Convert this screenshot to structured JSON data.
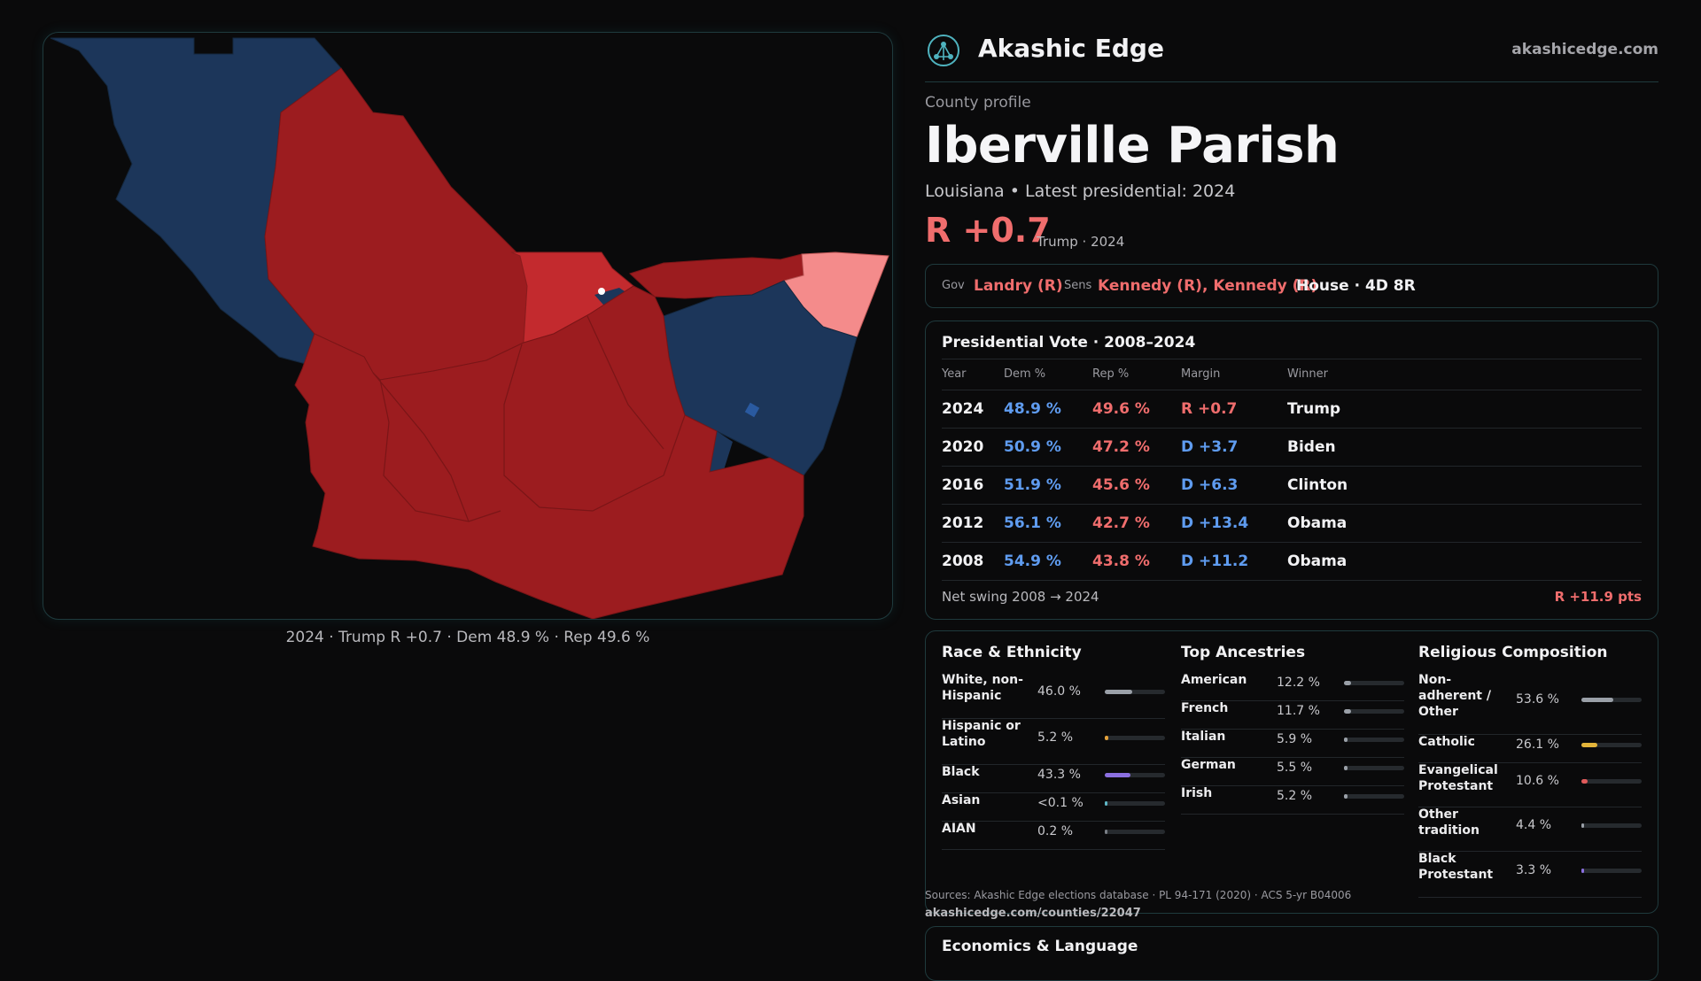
{
  "map": {
    "caption": "2024 · Trump R +0.7 · Dem 48.9 % · Rep 49.6 %",
    "colors": {
      "dem": "#1c365a",
      "rep": "#9c1c1f",
      "rep_light": "#c32a2e",
      "rep_pale": "#f48b8b"
    }
  },
  "header": {
    "brand": "Akashic Edge",
    "site": "akashicedge.com",
    "logo_icon": "network-globe-icon"
  },
  "profile": {
    "eyebrow": "County profile",
    "name": "Iberville Parish",
    "subtitle": "Louisiana • Latest presidential: 2024",
    "margin": "R +0.7",
    "margin_note": "Trump · 2024"
  },
  "officials": {
    "gov_label": "Gov",
    "gov": "Landry (R)",
    "sens_label": "Sens",
    "sens": "Kennedy (R), Kennedy (R)",
    "house": "House · 4D 8R"
  },
  "presidential": {
    "title": "Presidential Vote · 2008–2024",
    "headers": [
      "Year",
      "Dem %",
      "Rep %",
      "Margin",
      "Winner"
    ],
    "rows": [
      {
        "year": "2024",
        "dem": "48.9 %",
        "rep": "49.6 %",
        "margin": "R +0.7",
        "winner": "Trump"
      },
      {
        "year": "2020",
        "dem": "50.9 %",
        "rep": "47.2 %",
        "margin": "D +3.7",
        "winner": "Biden"
      },
      {
        "year": "2016",
        "dem": "51.9 %",
        "rep": "45.6 %",
        "margin": "D +6.3",
        "winner": "Clinton"
      },
      {
        "year": "2012",
        "dem": "56.1 %",
        "rep": "42.7 %",
        "margin": "D +13.4",
        "winner": "Obama"
      },
      {
        "year": "2008",
        "dem": "54.9 %",
        "rep": "43.8 %",
        "margin": "D +11.2",
        "winner": "Obama"
      }
    ],
    "net_label": "Net swing 2008 → 2024",
    "net_value": "R +11.9 pts"
  },
  "demographics": {
    "race": {
      "title": "Race & Ethnicity",
      "items": [
        {
          "label": "White, non-Hispanic",
          "value": "46.0 %",
          "pct": 46.0,
          "color": "#9aa0a8"
        },
        {
          "label": "Hispanic or Latino",
          "value": "5.2 %",
          "pct": 5.2,
          "color": "#e3a13a"
        },
        {
          "label": "Black",
          "value": "43.3 %",
          "pct": 43.3,
          "color": "#8b6fe0"
        },
        {
          "label": "Asian",
          "value": "<0.1 %",
          "pct": 0.05,
          "color": "#5fb7c7"
        },
        {
          "label": "AIAN",
          "value": "0.2 %",
          "pct": 0.2,
          "color": "#7a7f86"
        }
      ]
    },
    "ancestry": {
      "title": "Top Ancestries",
      "items": [
        {
          "label": "American",
          "value": "12.2 %",
          "pct": 12.2,
          "color": "#9aa0a8"
        },
        {
          "label": "French",
          "value": "11.7 %",
          "pct": 11.7,
          "color": "#9aa0a8"
        },
        {
          "label": "Italian",
          "value": "5.9 %",
          "pct": 5.9,
          "color": "#9aa0a8"
        },
        {
          "label": "German",
          "value": "5.5 %",
          "pct": 5.5,
          "color": "#9aa0a8"
        },
        {
          "label": "Irish",
          "value": "5.2 %",
          "pct": 5.2,
          "color": "#9aa0a8"
        }
      ]
    },
    "religion": {
      "title": "Religious Composition",
      "items": [
        {
          "label": "Non-adherent / Other",
          "value": "53.6 %",
          "pct": 53.6,
          "color": "#9aa0a8"
        },
        {
          "label": "Catholic",
          "value": "26.1 %",
          "pct": 26.1,
          "color": "#e3b43a"
        },
        {
          "label": "Evangelical Protestant",
          "value": "10.6 %",
          "pct": 10.6,
          "color": "#e05a5a"
        },
        {
          "label": "Other tradition",
          "value": "4.4 %",
          "pct": 4.4,
          "color": "#9aa0a8"
        },
        {
          "label": "Black Protestant",
          "value": "3.3 %",
          "pct": 3.3,
          "color": "#8b6fe0"
        }
      ]
    }
  },
  "sources": {
    "text": "Sources: Akashic Edge elections database · PL 94-171 (2020) · ACS 5-yr B04006",
    "url": "akashicedge.com/counties/22047"
  },
  "econ": {
    "title": "Economics & Language"
  }
}
